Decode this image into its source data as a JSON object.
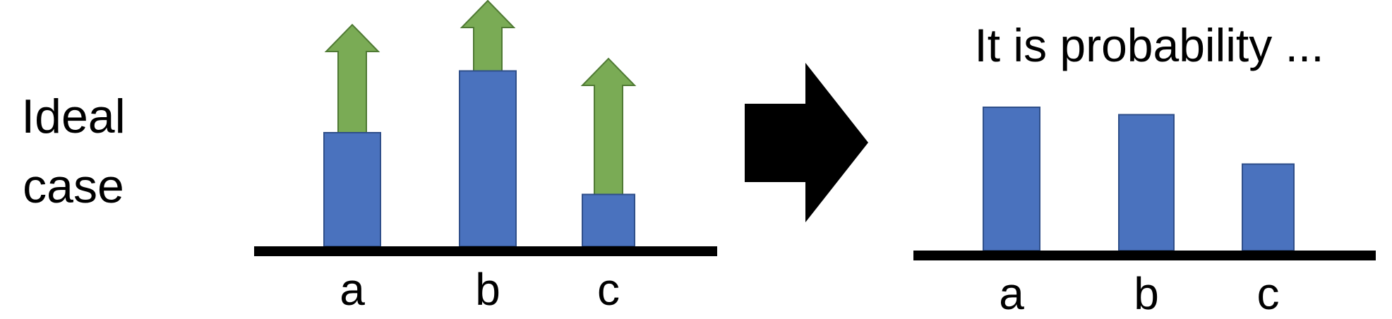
{
  "side_label": {
    "line1": "Ideal",
    "line2": "case"
  },
  "right_title": "It is probability ...",
  "chart_data": [
    {
      "type": "bar",
      "categories": [
        "a",
        "b",
        "c"
      ],
      "values": [
        0.46,
        0.71,
        0.21
      ],
      "arrows": true,
      "title": "",
      "xlabel": "",
      "ylabel": ""
    },
    {
      "type": "bar",
      "categories": [
        "a",
        "b",
        "c"
      ],
      "values": [
        0.58,
        0.55,
        0.35
      ],
      "title": "It is probability ...",
      "xlabel": "",
      "ylabel": ""
    }
  ],
  "colors": {
    "bar_fill": "#4a72be",
    "bar_stroke": "#2f4f8a",
    "arrow_fill": "#7aab55",
    "arrow_stroke": "#4f7a33",
    "axis": "#000000",
    "big_arrow": "#000000"
  },
  "icons": {
    "transform_arrow": "right-arrow-icon",
    "up_arrow": "up-arrow-icon"
  }
}
